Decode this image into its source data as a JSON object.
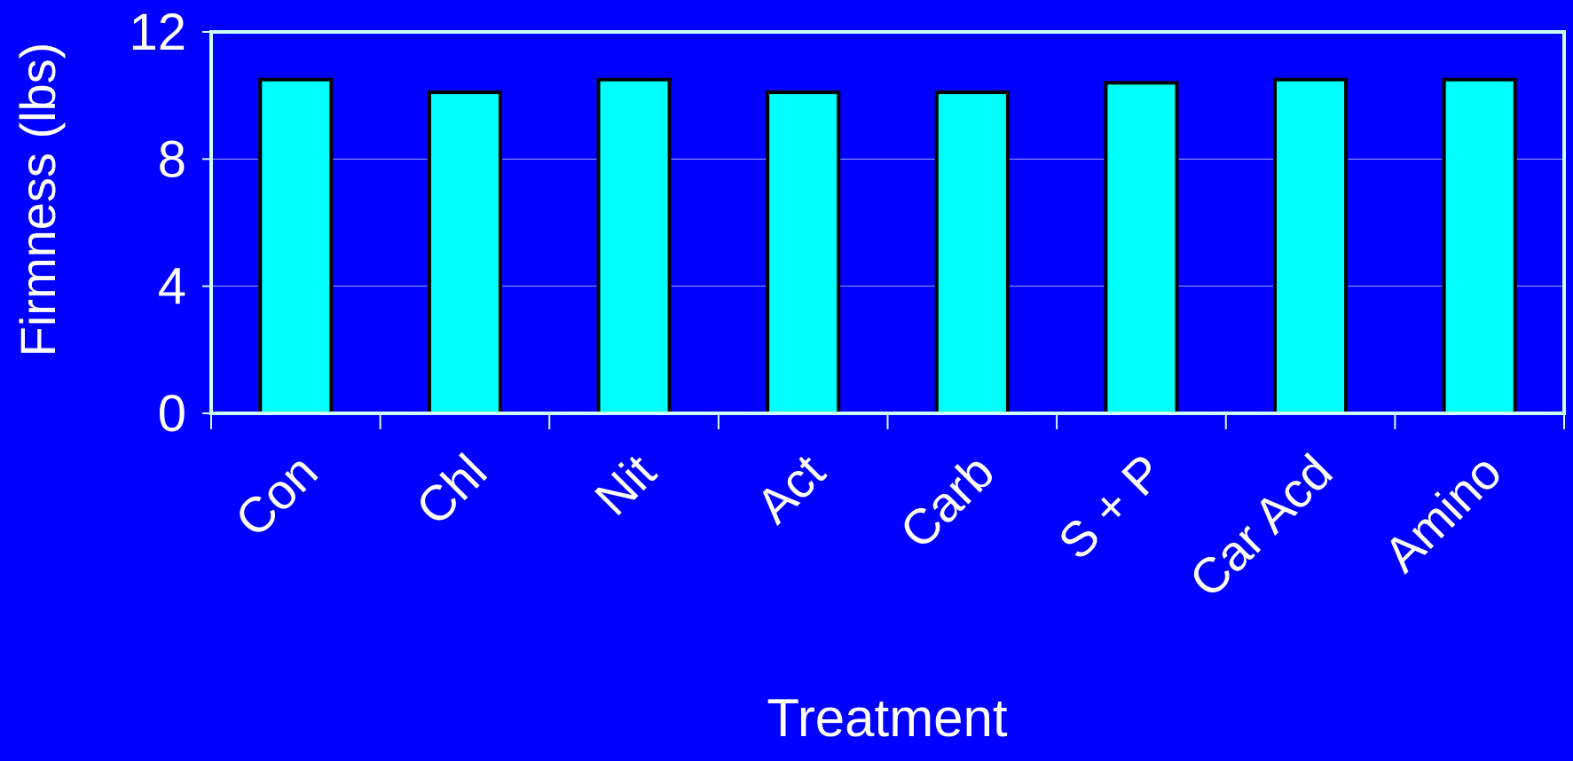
{
  "colors": {
    "background": "#0000FF",
    "plot_border": "#CCFFFF",
    "bar_fill": "#00FFFF",
    "bar_stroke": "#000000",
    "gridline": "#9FA8FF",
    "text": "#FFFFFF"
  },
  "chart_data": {
    "type": "bar",
    "title": "",
    "xlabel": "Treatment",
    "ylabel": "Firmness (lbs)",
    "ylim": [
      0,
      12
    ],
    "yticks": [
      0,
      4,
      8,
      12
    ],
    "ytick_labels": [
      "0",
      "4",
      "8",
      "12"
    ],
    "grid": true,
    "legend": "none",
    "categories": [
      "Con",
      "Chl",
      "Nit",
      "Act",
      "Carb",
      "S + P",
      "Car Acd",
      "Amino"
    ],
    "values": [
      10.5,
      10.1,
      10.5,
      10.1,
      10.1,
      10.4,
      10.5,
      10.5
    ]
  }
}
